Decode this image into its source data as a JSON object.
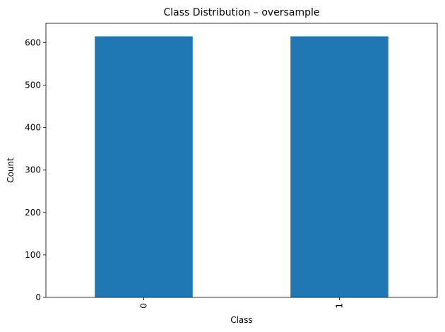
{
  "chart_data": {
    "type": "bar",
    "title": "Class Distribution – oversample",
    "xlabel": "Class",
    "ylabel": "Count",
    "categories": [
      "0",
      "1"
    ],
    "values": [
      615,
      615
    ],
    "ylim": [
      0,
      645.75
    ],
    "yticks": [
      0,
      100,
      200,
      300,
      400,
      500,
      600
    ],
    "xtick_rotation": 90,
    "grid": false,
    "legend": "none",
    "colors": {
      "bar": "#1f77b4",
      "axis": "#000000",
      "background": "#ffffff"
    }
  }
}
